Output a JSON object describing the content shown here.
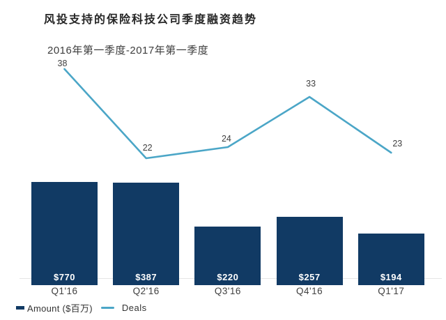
{
  "header": {
    "title": "风投支持的保险科技公司季度融资趋势",
    "subtitle": "2016年第一季度-2017年第一季度"
  },
  "legend": {
    "amount_label": "Amount ($百万)",
    "deals_label": "Deals"
  },
  "colors": {
    "bar": "#113A64",
    "line": "#4BA6C7",
    "axis_line": "#E5E5E5",
    "bar_value_text": "#FFFFFF",
    "axis_text": "#404040",
    "title_text": "#262626"
  },
  "chart_data": {
    "type": "combo",
    "title": "风投支持的保险科技公司季度融资趋势",
    "subtitle": "2016年第一季度-2017年第一季度",
    "categories": [
      "Q1'16",
      "Q2'16",
      "Q3'16",
      "Q4'16",
      "Q1'17"
    ],
    "series": [
      {
        "name": "Amount ($百万)",
        "type": "bar",
        "values": [
          770,
          387,
          220,
          257,
          194
        ],
        "value_labels": [
          "$770",
          "$387",
          "$220",
          "$257",
          "$194"
        ],
        "color": "#113A64"
      },
      {
        "name": "Deals",
        "type": "line",
        "values": [
          38,
          22,
          24,
          33,
          23
        ],
        "point_labels": [
          "38",
          "22",
          "24",
          "33",
          "23"
        ],
        "color": "#4BA6C7"
      }
    ],
    "xlabel": "",
    "ylabel": "",
    "grid": false,
    "legend_position": "bottom-left",
    "notes": "first bar drawn clipped to same visual height as second bar in source image"
  }
}
